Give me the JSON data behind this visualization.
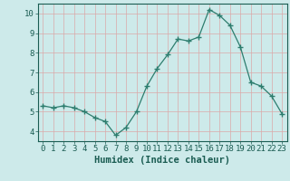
{
  "x": [
    0,
    1,
    2,
    3,
    4,
    5,
    6,
    7,
    8,
    9,
    10,
    11,
    12,
    13,
    14,
    15,
    16,
    17,
    18,
    19,
    20,
    21,
    22,
    23
  ],
  "y": [
    5.3,
    5.2,
    5.3,
    5.2,
    5.0,
    4.7,
    4.5,
    3.8,
    4.2,
    5.0,
    6.3,
    7.2,
    7.9,
    8.7,
    8.6,
    8.8,
    10.2,
    9.9,
    9.4,
    8.3,
    6.5,
    6.3,
    5.8,
    4.9
  ],
  "line_color": "#2d7d6e",
  "marker": "+",
  "marker_size": 4,
  "background_color": "#cdeaea",
  "grid_color": "#dba8a8",
  "xlabel": "Humidex (Indice chaleur)",
  "xlim": [
    -0.5,
    23.5
  ],
  "ylim": [
    3.5,
    10.5
  ],
  "yticks": [
    4,
    5,
    6,
    7,
    8,
    9,
    10
  ],
  "xticks": [
    0,
    1,
    2,
    3,
    4,
    5,
    6,
    7,
    8,
    9,
    10,
    11,
    12,
    13,
    14,
    15,
    16,
    17,
    18,
    19,
    20,
    21,
    22,
    23
  ],
  "tick_color": "#1a5c52",
  "label_fontsize": 7.5,
  "tick_fontsize": 6.5
}
